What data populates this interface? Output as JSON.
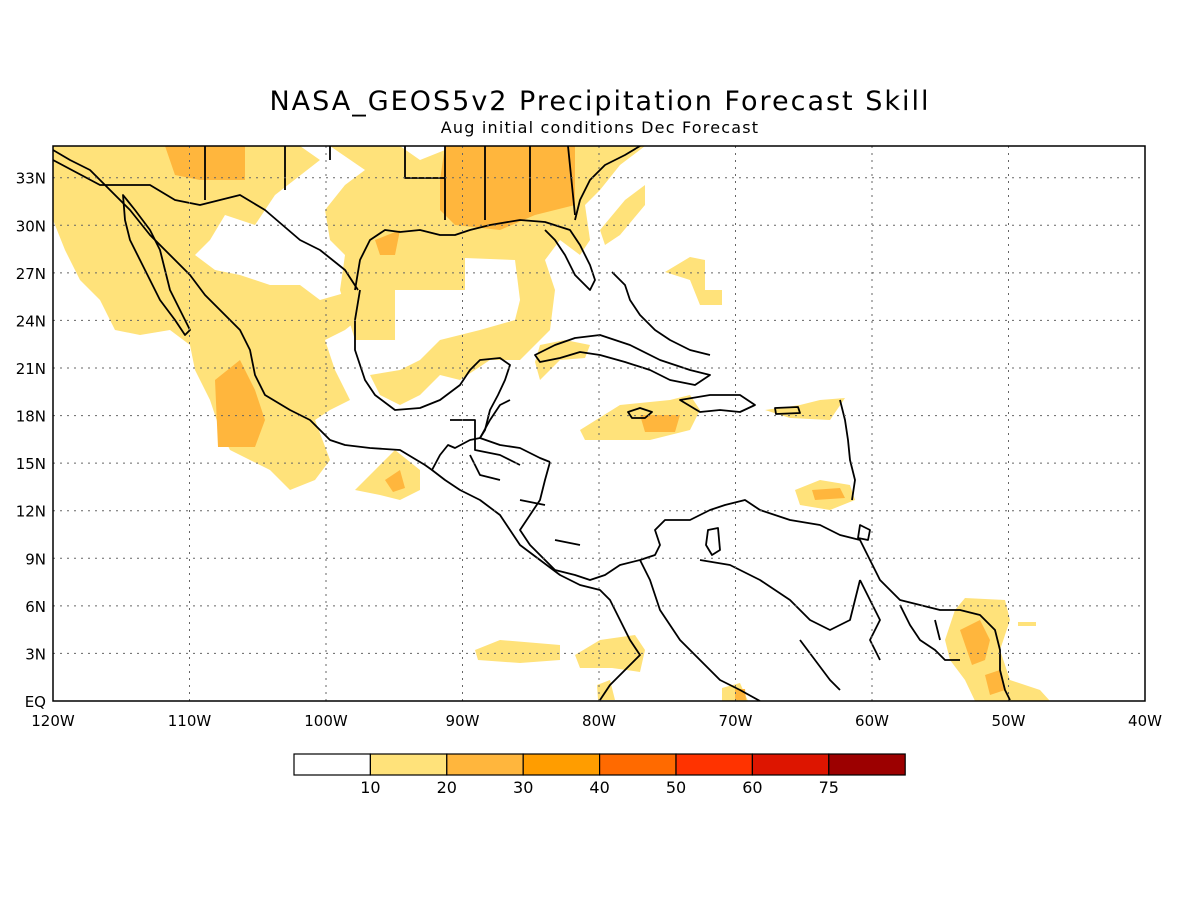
{
  "title": "NASA_GEOS5v2 Precipitation Forecast Skill",
  "subtitle": "Aug initial conditions  Dec Forecast",
  "map": {
    "region": "Central America and Caribbean",
    "lon_range": [
      -120,
      -40
    ],
    "lat_range": [
      0,
      35
    ],
    "lon_tick_labels": [
      "120W",
      "110W",
      "100W",
      "90W",
      "80W",
      "70W",
      "60W",
      "50W",
      "40W"
    ],
    "lat_tick_labels": [
      "EQ",
      "3N",
      "6N",
      "9N",
      "12N",
      "15N",
      "18N",
      "21N",
      "24N",
      "27N",
      "30N",
      "33N"
    ],
    "gridlines": "dotted"
  },
  "colorbar": {
    "labels": [
      "10",
      "20",
      "30",
      "40",
      "50",
      "60",
      "75"
    ],
    "colors": [
      "#ffffff",
      "#ffe27a",
      "#ffb63d",
      "#ff9d00",
      "#ff6a00",
      "#ff3300",
      "#dd1500",
      "#9c0000"
    ]
  },
  "colors": {
    "skill_10_20": "#ffe27a",
    "skill_20_30": "#ffb63d",
    "skill_30_40": "#ff9d00",
    "coastline": "#000000"
  }
}
